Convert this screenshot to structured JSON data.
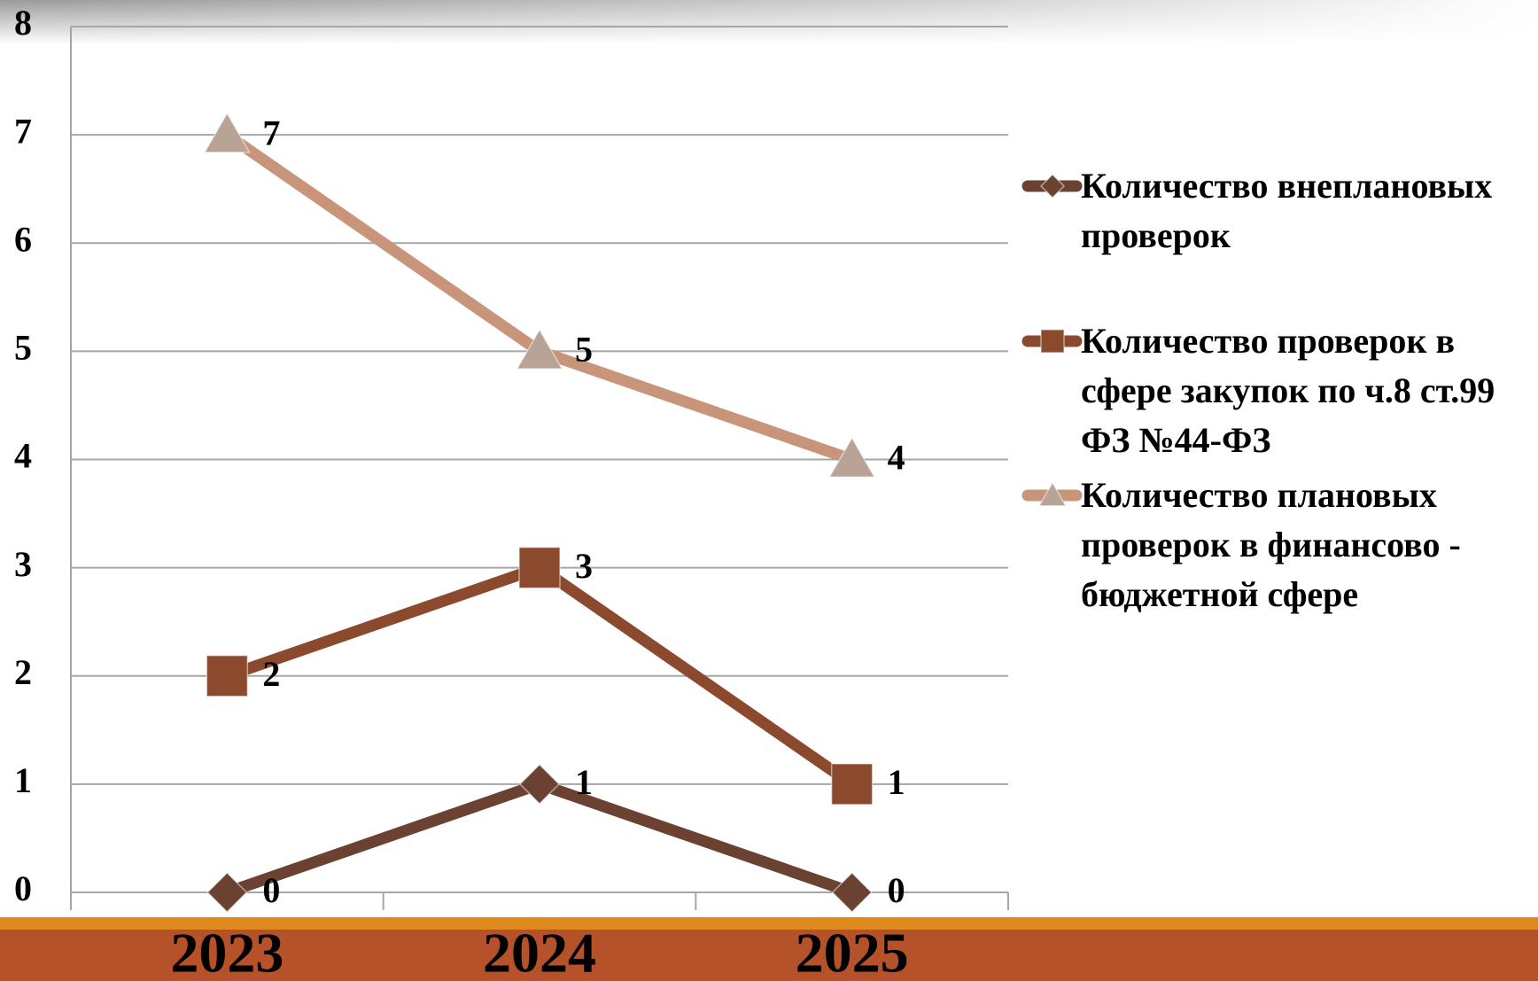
{
  "chart_data": {
    "type": "line",
    "categories": [
      "2023",
      "2024",
      "2025"
    ],
    "series": [
      {
        "name": "Количество внеплановых проверок",
        "color": "#6b4232",
        "marker": "diamond",
        "values": [
          0,
          1,
          0
        ]
      },
      {
        "name": "Количество проверок в сфере закупок по ч.8 ст.99 ФЗ №44-ФЗ",
        "color": "#8b4a2e",
        "marker": "square",
        "values": [
          2,
          3,
          1
        ]
      },
      {
        "name": "Количество плановых проверок в финансово - бюджетной сфере",
        "color": "#c8957a",
        "marker": "triangle",
        "values": [
          7,
          5,
          4
        ]
      }
    ],
    "ylim": [
      0,
      8
    ],
    "yticks": [
      0,
      1,
      2,
      3,
      4,
      5,
      6,
      7,
      8
    ],
    "grid": true
  }
}
